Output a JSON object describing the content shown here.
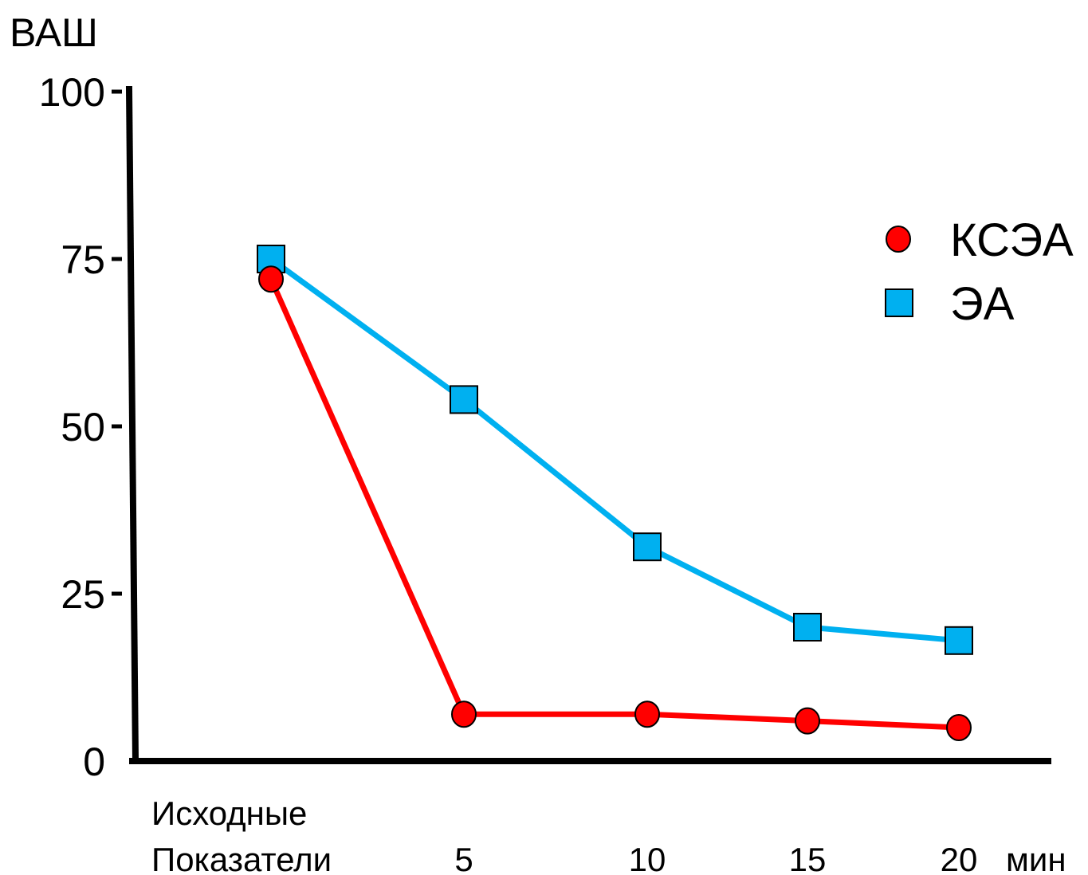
{
  "chart_data": {
    "type": "line",
    "ylabel": "ВАШ",
    "xunit": "мин",
    "ylim": [
      0,
      100
    ],
    "y_ticks": [
      "0",
      "25",
      "50",
      "75",
      "100"
    ],
    "categories": [
      [
        "Исходные",
        "Показатели"
      ],
      [
        "5"
      ],
      [
        "10"
      ],
      [
        "15"
      ],
      [
        "20"
      ]
    ],
    "legend_position": "right",
    "grid": false,
    "series": [
      {
        "name": "КСЭА",
        "marker": "circle",
        "color": "#ff0000",
        "values": [
          72,
          7,
          7,
          6,
          5
        ]
      },
      {
        "name": "ЭА",
        "marker": "square",
        "color": "#00b0f0",
        "values": [
          75,
          54,
          32,
          20,
          18
        ]
      }
    ]
  }
}
